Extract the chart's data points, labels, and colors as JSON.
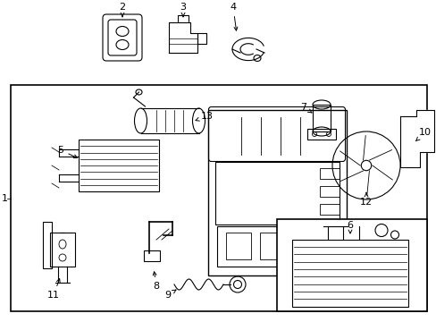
{
  "bg": "#ffffff",
  "lc": "#000000",
  "figsize": [
    4.89,
    3.6
  ],
  "dpi": 100
}
